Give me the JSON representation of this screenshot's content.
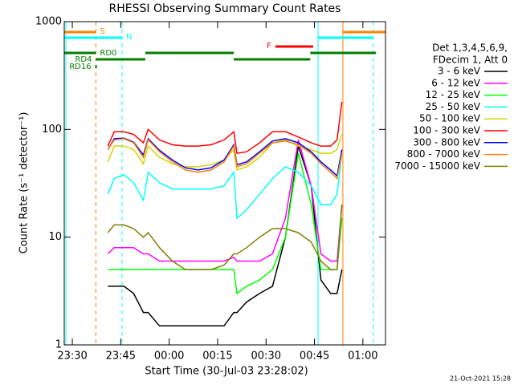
{
  "chart_data": {
    "type": "line",
    "title": "RHESSI Observing Summary Count Rates",
    "x_label": "Start Time (30-Jul-03 23:28:02)",
    "y_label": "Count Rate (s⁻¹ detector⁻¹)",
    "footer": "21-Oct-2021 15:28",
    "legend_header": [
      "Det 1,3,4,5,6,9,",
      "FDecim 1, Att 0"
    ],
    "log_y": true,
    "xlim": [
      27.5,
      127
    ],
    "ylim": [
      1,
      1000
    ],
    "xticks": [
      {
        "value": 30,
        "label": "23:30"
      },
      {
        "value": 45,
        "label": "23:45"
      },
      {
        "value": 60,
        "label": "00:00"
      },
      {
        "value": 75,
        "label": "00:15"
      },
      {
        "value": 90,
        "label": "00:30"
      },
      {
        "value": 105,
        "label": "00:45"
      },
      {
        "value": 120,
        "label": "01:00"
      }
    ],
    "yticks": [
      1,
      10,
      100,
      1000
    ],
    "x": [
      41,
      43,
      46,
      49,
      52,
      53.5,
      57,
      61,
      65,
      69,
      73,
      77,
      80,
      81,
      84,
      88,
      92,
      96,
      100,
      104,
      107,
      110,
      112,
      113.5
    ],
    "series": [
      {
        "name": "3 - 6 keV",
        "color": "#000000",
        "values": [
          3.5,
          3.5,
          3.5,
          3,
          2,
          2,
          1.5,
          1.5,
          1.5,
          1.5,
          1.5,
          1.5,
          2,
          2,
          2.5,
          3,
          3.5,
          10,
          70,
          30,
          4,
          3,
          3,
          5
        ]
      },
      {
        "name": "6 - 12 keV",
        "color": "#ff00ff",
        "values": [
          7,
          8,
          8,
          8,
          7,
          7,
          6,
          6,
          6,
          6,
          6,
          6,
          6.5,
          6,
          6,
          6,
          7,
          15,
          80,
          30,
          7,
          6,
          6,
          20
        ]
      },
      {
        "name": "12 - 25 keV",
        "color": "#00ff00",
        "values": [
          5,
          5,
          5,
          5,
          5,
          5,
          5,
          5,
          5,
          5,
          5,
          5,
          5,
          3,
          3.5,
          4,
          5,
          10,
          60,
          20,
          5,
          5,
          5,
          15
        ]
      },
      {
        "name": "25 - 50 keV",
        "color": "#00ffff",
        "values": [
          25,
          35,
          38,
          32,
          22,
          40,
          32,
          28,
          28,
          28,
          28,
          30,
          40,
          15,
          18,
          25,
          35,
          45,
          40,
          30,
          20,
          20,
          25,
          60
        ]
      },
      {
        "name": "50 - 100 keV",
        "color": "#d4d400",
        "values": [
          50,
          70,
          70,
          65,
          48,
          70,
          55,
          48,
          45,
          45,
          47,
          52,
          65,
          42,
          45,
          55,
          75,
          80,
          70,
          65,
          60,
          60,
          65,
          90
        ]
      },
      {
        "name": "100 - 300 keV",
        "color": "#ff0000",
        "values": [
          70,
          95,
          95,
          90,
          75,
          100,
          80,
          72,
          70,
          70,
          72,
          80,
          95,
          60,
          62,
          75,
          95,
          95,
          85,
          75,
          70,
          70,
          80,
          180
        ]
      },
      {
        "name": "300 - 800 keV",
        "color": "#0000ff",
        "values": [
          65,
          82,
          83,
          76,
          58,
          82,
          64,
          52,
          44,
          42,
          44,
          52,
          72,
          47,
          50,
          62,
          78,
          82,
          75,
          62,
          50,
          42,
          37,
          65
        ]
      },
      {
        "name": "800 - 7000 keV",
        "color": "#ff8000",
        "values": [
          65,
          80,
          82,
          75,
          55,
          80,
          62,
          50,
          42,
          40,
          42,
          50,
          70,
          45,
          48,
          60,
          75,
          78,
          72,
          60,
          48,
          40,
          35,
          60
        ]
      },
      {
        "name": "7000 - 15000 keV",
        "color": "#808000",
        "values": [
          11,
          13,
          13,
          12,
          10,
          11,
          8,
          6,
          5,
          5,
          5,
          5.5,
          7,
          7,
          8,
          10,
          12,
          12,
          11,
          9,
          6,
          5,
          5,
          20
        ]
      }
    ],
    "flags": [
      {
        "label": "S",
        "color": "#ff8000",
        "spans": [
          [
            27.5,
            37.3
          ],
          [
            113.8,
            127
          ]
        ]
      },
      {
        "label": "N",
        "color": "#00ffff",
        "spans": [
          [
            27.5,
            45.4
          ],
          [
            106.1,
            123.2
          ]
        ]
      },
      {
        "label": "F",
        "color": "#ff0000",
        "spans": [
          [
            92.9,
            104.6
          ]
        ]
      },
      {
        "label": "RD0",
        "color": "#008000",
        "spans": [
          [
            27.5,
            37.3
          ],
          [
            52.6,
            80
          ],
          [
            103.7,
            124
          ]
        ]
      },
      {
        "label": "RD4",
        "color": "#008000",
        "spans": [
          [
            37.3,
            52.6
          ],
          [
            80,
            103.7
          ]
        ]
      },
      {
        "label": "RD16",
        "color": "#008000",
        "spans": [
          [
            37.1,
            37.6
          ]
        ]
      }
    ],
    "vlines": [
      {
        "x": 28,
        "color": "#00ffff",
        "dashed": false
      },
      {
        "x": 37.3,
        "color": "#ff8000",
        "dashed": true
      },
      {
        "x": 45.4,
        "color": "#00ffff",
        "dashed": true
      },
      {
        "x": 106.1,
        "color": "#00ffff",
        "dashed": false
      },
      {
        "x": 113.8,
        "color": "#ff8000",
        "dashed": false
      },
      {
        "x": 123.2,
        "color": "#00ffff",
        "dashed": true
      }
    ]
  }
}
